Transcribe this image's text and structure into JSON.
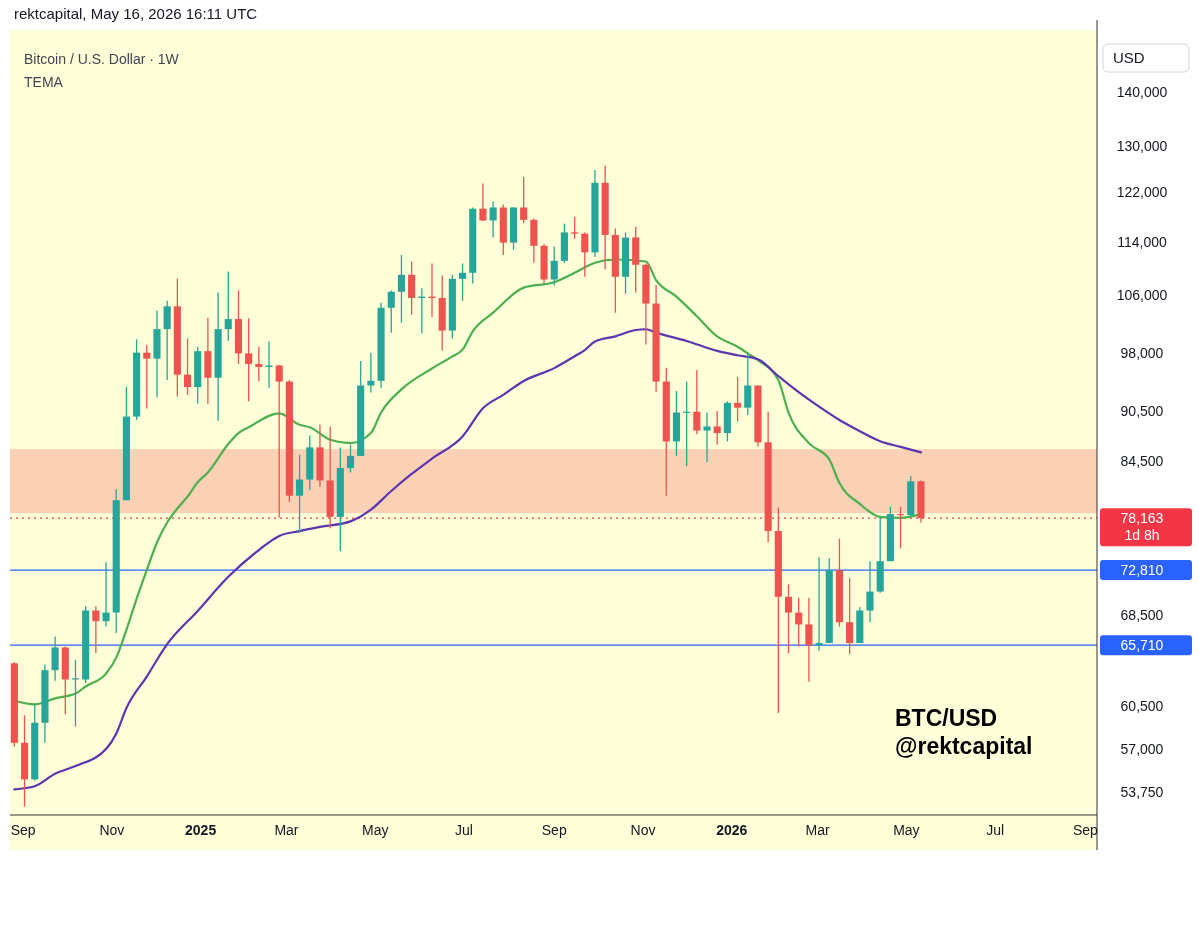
{
  "chart_data": {
    "type": "candlestick",
    "title": "Bitcoin / U.S. Dollar · 1W",
    "subtitle": "TEMA",
    "ylabel": "USD",
    "annotations": [
      "rektcapital, May 16, 2026 16:11 UTC",
      "BTC/USD",
      "@rektcapital",
      "1d 8h"
    ],
    "log": true,
    "xlim": [
      "2024-08-23",
      "2026-09-09"
    ],
    "ylim": [
      52100,
      152300
    ],
    "xticks": [
      {
        "value": "2024-09-01",
        "label": "Sep"
      },
      {
        "value": "2024-11-01",
        "label": "Nov"
      },
      {
        "value": "2025-01-01",
        "label": "2025"
      },
      {
        "value": "2025-03-01",
        "label": "Mar"
      },
      {
        "value": "2025-05-01",
        "label": "May"
      },
      {
        "value": "2025-07-01",
        "label": "Jul"
      },
      {
        "value": "2025-09-01",
        "label": "Sep"
      },
      {
        "value": "2025-11-01",
        "label": "Nov"
      },
      {
        "value": "2026-01-01",
        "label": "2026"
      },
      {
        "value": "2026-03-01",
        "label": "Mar"
      },
      {
        "value": "2026-05-01",
        "label": "May"
      },
      {
        "value": "2026-07-01",
        "label": "Jul"
      },
      {
        "value": "2026-09-01",
        "label": "Sep"
      }
    ],
    "yticks": [
      {
        "value": 53750,
        "label": "53,750"
      },
      {
        "value": 57000,
        "label": "57,000"
      },
      {
        "value": 60500,
        "label": "60,500"
      },
      {
        "value": 68500,
        "label": "68,500"
      },
      {
        "value": 84500,
        "label": "84,500"
      },
      {
        "value": 90500,
        "label": "90,500"
      },
      {
        "value": 98000,
        "label": "98,000"
      },
      {
        "value": 106000,
        "label": "106,000"
      },
      {
        "value": 114000,
        "label": "114,000"
      },
      {
        "value": 122000,
        "label": "122,000"
      },
      {
        "value": 130000,
        "label": "130,000"
      },
      {
        "value": 140000,
        "label": "140,000"
      }
    ],
    "ref_lines": [
      {
        "axis": "y",
        "value": 78163,
        "label": "78,163",
        "color": "#f23645",
        "line_style": "dotted"
      },
      {
        "axis": "y",
        "value": 72810,
        "label": "72,810",
        "color": "#2962ff",
        "line_style": "solid"
      },
      {
        "axis": "y",
        "value": 65710,
        "label": "65,710",
        "color": "#2962ff",
        "line_style": "solid"
      }
    ],
    "bands": [
      {
        "axis": "y",
        "from": 78700,
        "to": 85900,
        "color": "#f9c9ad"
      }
    ],
    "x": [
      "2024-08-26",
      "2024-09-02",
      "2024-09-09",
      "2024-09-16",
      "2024-09-23",
      "2024-09-30",
      "2024-10-07",
      "2024-10-14",
      "2024-10-21",
      "2024-10-28",
      "2024-11-04",
      "2024-11-11",
      "2024-11-18",
      "2024-11-25",
      "2024-12-02",
      "2024-12-09",
      "2024-12-16",
      "2024-12-23",
      "2024-12-30",
      "2025-01-06",
      "2025-01-13",
      "2025-01-20",
      "2025-01-27",
      "2025-02-03",
      "2025-02-10",
      "2025-02-17",
      "2025-02-24",
      "2025-03-03",
      "2025-03-10",
      "2025-03-17",
      "2025-03-24",
      "2025-03-31",
      "2025-04-07",
      "2025-04-14",
      "2025-04-21",
      "2025-04-28",
      "2025-05-05",
      "2025-05-12",
      "2025-05-19",
      "2025-05-26",
      "2025-06-02",
      "2025-06-09",
      "2025-06-16",
      "2025-06-23",
      "2025-06-30",
      "2025-07-07",
      "2025-07-14",
      "2025-07-21",
      "2025-07-28",
      "2025-08-04",
      "2025-08-11",
      "2025-08-18",
      "2025-08-25",
      "2025-09-01",
      "2025-09-08",
      "2025-09-15",
      "2025-09-22",
      "2025-09-29",
      "2025-10-06",
      "2025-10-13",
      "2025-10-20",
      "2025-10-27",
      "2025-11-03",
      "2025-11-10",
      "2025-11-17",
      "2025-11-24",
      "2025-12-01",
      "2025-12-08",
      "2025-12-15",
      "2025-12-22",
      "2025-12-29",
      "2026-01-05",
      "2026-01-12",
      "2026-01-19",
      "2026-01-26",
      "2026-02-02",
      "2026-02-09",
      "2026-02-16",
      "2026-02-23",
      "2026-03-02",
      "2026-03-09",
      "2026-03-16",
      "2026-03-23",
      "2026-03-30",
      "2026-04-06",
      "2026-04-13",
      "2026-04-20",
      "2026-04-27",
      "2026-05-04",
      "2026-05-11"
    ],
    "ohlc": [
      [
        64100,
        64200,
        57200,
        57500
      ],
      [
        57500,
        59700,
        52700,
        54700
      ],
      [
        54700,
        60600,
        54600,
        59100
      ],
      [
        59100,
        64000,
        57500,
        63500
      ],
      [
        63500,
        66500,
        62600,
        65500
      ],
      [
        65500,
        65600,
        59800,
        62700
      ],
      [
        62700,
        64400,
        58800,
        62800
      ],
      [
        62700,
        69300,
        62400,
        68900
      ],
      [
        68900,
        69300,
        65000,
        67900
      ],
      [
        67900,
        73600,
        67400,
        68700
      ],
      [
        68700,
        81300,
        66800,
        80100
      ],
      [
        80100,
        93500,
        80100,
        89800
      ],
      [
        89800,
        99800,
        89400,
        98000
      ],
      [
        98000,
        99000,
        90800,
        97200
      ],
      [
        97200,
        103800,
        92200,
        101200
      ],
      [
        101200,
        105200,
        94400,
        104400
      ],
      [
        104400,
        108400,
        92300,
        95100
      ],
      [
        95100,
        99900,
        92500,
        93500
      ],
      [
        93500,
        98800,
        91400,
        98200
      ],
      [
        98200,
        102800,
        91400,
        94700
      ],
      [
        94700,
        106400,
        89300,
        101200
      ],
      [
        101200,
        109500,
        99600,
        102600
      ],
      [
        102600,
        106700,
        96500,
        97900
      ],
      [
        97900,
        102700,
        91700,
        96500
      ],
      [
        96500,
        98800,
        94200,
        96100
      ],
      [
        96100,
        99500,
        93400,
        96300
      ],
      [
        96300,
        96400,
        78200,
        94200
      ],
      [
        94200,
        94400,
        79900,
        80600
      ],
      [
        80600,
        85200,
        76600,
        82400
      ],
      [
        82400,
        87500,
        81200,
        86100
      ],
      [
        86100,
        88800,
        81600,
        82300
      ],
      [
        82300,
        88600,
        77100,
        78300
      ],
      [
        78300,
        86100,
        74700,
        83700
      ],
      [
        83700,
        86400,
        83200,
        85100
      ],
      [
        85100,
        96900,
        85100,
        93700
      ],
      [
        93700,
        98000,
        92800,
        94300
      ],
      [
        94300,
        104900,
        93400,
        104200
      ],
      [
        104200,
        106700,
        100700,
        106500
      ],
      [
        106500,
        112000,
        102100,
        109000
      ],
      [
        109000,
        111000,
        103200,
        105600
      ],
      [
        105600,
        107000,
        100600,
        105800
      ],
      [
        105800,
        110700,
        102900,
        105600
      ],
      [
        105600,
        108900,
        98300,
        101000
      ],
      [
        101000,
        109000,
        99900,
        108400
      ],
      [
        108400,
        110700,
        105200,
        109300
      ],
      [
        109300,
        119500,
        107700,
        119300
      ],
      [
        119300,
        123500,
        117300,
        117400
      ],
      [
        117400,
        120500,
        114700,
        119500
      ],
      [
        119500,
        120000,
        112000,
        113900
      ],
      [
        113900,
        119500,
        112800,
        119500
      ],
      [
        119500,
        124600,
        117000,
        117500
      ],
      [
        117500,
        117700,
        110800,
        113400
      ],
      [
        113400,
        113700,
        107700,
        108300
      ],
      [
        108300,
        113300,
        107400,
        111100
      ],
      [
        111100,
        116900,
        110800,
        115500
      ],
      [
        115500,
        118000,
        114500,
        115300
      ],
      [
        115300,
        115500,
        108700,
        112400
      ],
      [
        112400,
        125800,
        111700,
        123600
      ],
      [
        123600,
        126500,
        109800,
        115100
      ],
      [
        115100,
        116100,
        103500,
        108700
      ],
      [
        108700,
        115500,
        106200,
        114700
      ],
      [
        114700,
        116400,
        106400,
        110500
      ],
      [
        110500,
        110700,
        99100,
        104800
      ],
      [
        104800,
        107500,
        92900,
        94200
      ],
      [
        94200,
        96000,
        80600,
        86800
      ],
      [
        86800,
        93000,
        85100,
        90300
      ],
      [
        90300,
        94200,
        83900,
        90400
      ],
      [
        90400,
        95700,
        87700,
        88100
      ],
      [
        88100,
        90300,
        84400,
        88600
      ],
      [
        88600,
        90500,
        86400,
        87800
      ],
      [
        87800,
        91700,
        86800,
        91500
      ],
      [
        91500,
        94800,
        89200,
        90900
      ],
      [
        90900,
        97900,
        90000,
        93700
      ],
      [
        93700,
        93700,
        86200,
        86700
      ],
      [
        86700,
        90400,
        75600,
        76800
      ],
      [
        76800,
        79300,
        59900,
        70200
      ],
      [
        70200,
        71400,
        65000,
        68700
      ],
      [
        68700,
        70100,
        65600,
        67600
      ],
      [
        67600,
        70100,
        62500,
        65700
      ],
      [
        65700,
        74100,
        65200,
        65900
      ],
      [
        65900,
        74000,
        65900,
        72800
      ],
      [
        72800,
        76000,
        67400,
        67800
      ],
      [
        67800,
        72000,
        64900,
        65900
      ],
      [
        65900,
        69200,
        65900,
        68900
      ],
      [
        68900,
        73700,
        67800,
        70700
      ],
      [
        70700,
        78300,
        70600,
        73700
      ],
      [
        73700,
        79400,
        73700,
        78600
      ],
      [
        78600,
        79400,
        75000,
        78500
      ],
      [
        78500,
        82800,
        78300,
        82200
      ],
      [
        82200,
        82300,
        77700,
        78163
      ]
    ],
    "series": [
      {
        "type": "line",
        "color": "#4caf50",
        "x": [
          "2024-08-26",
          "2024-09-09",
          "2024-09-23",
          "2024-10-07",
          "2024-10-14",
          "2024-10-28",
          "2024-11-04",
          "2024-11-11",
          "2024-11-18",
          "2024-11-25",
          "2024-12-02",
          "2024-12-09",
          "2024-12-16",
          "2024-12-23",
          "2024-12-30",
          "2025-01-06",
          "2025-01-20",
          "2025-01-27",
          "2025-02-03",
          "2025-02-24",
          "2025-03-10",
          "2025-03-17",
          "2025-03-31",
          "2025-04-14",
          "2025-04-28",
          "2025-05-05",
          "2025-05-19",
          "2025-06-09",
          "2025-06-23",
          "2025-06-30",
          "2025-07-07",
          "2025-07-21",
          "2025-08-11",
          "2025-09-01",
          "2025-09-15",
          "2025-09-29",
          "2025-10-13",
          "2025-11-03",
          "2025-11-10",
          "2025-11-24",
          "2025-12-08",
          "2025-12-22",
          "2026-01-05",
          "2026-01-12",
          "2026-01-19",
          "2026-02-02",
          "2026-02-09",
          "2026-02-23",
          "2026-03-09",
          "2026-03-16",
          "2026-03-30",
          "2026-04-13",
          "2026-04-27",
          "2026-05-11"
        ],
        "values": [
          60900,
          60600,
          61100,
          61500,
          62100,
          63200,
          64600,
          67100,
          70000,
          72800,
          75600,
          77700,
          79200,
          80500,
          82100,
          83200,
          86500,
          87800,
          88500,
          90200,
          88800,
          88500,
          87000,
          86600,
          87800,
          90300,
          93200,
          95900,
          97500,
          98400,
          100900,
          103500,
          107100,
          107900,
          109300,
          110800,
          111300,
          111000,
          108200,
          105800,
          103000,
          100200,
          98800,
          97900,
          97000,
          94400,
          90300,
          86600,
          84700,
          82000,
          79700,
          78300,
          78200,
          78600
        ]
      },
      {
        "type": "line",
        "color": "#5e35b1",
        "x": [
          "2024-08-26",
          "2024-09-09",
          "2024-09-23",
          "2024-10-07",
          "2024-10-28",
          "2024-11-04",
          "2024-11-11",
          "2024-11-25",
          "2024-12-09",
          "2024-12-30",
          "2025-01-20",
          "2025-02-10",
          "2025-02-24",
          "2025-03-10",
          "2025-03-24",
          "2025-04-14",
          "2025-04-28",
          "2025-05-12",
          "2025-05-26",
          "2025-06-09",
          "2025-06-30",
          "2025-07-14",
          "2025-07-28",
          "2025-08-11",
          "2025-09-01",
          "2025-09-15",
          "2025-09-22",
          "2025-09-29",
          "2025-10-13",
          "2025-10-27",
          "2025-11-03",
          "2025-11-10",
          "2025-12-01",
          "2025-12-22",
          "2026-01-05",
          "2026-01-19",
          "2026-02-02",
          "2026-02-16",
          "2026-03-02",
          "2026-03-16",
          "2026-03-30",
          "2026-04-13",
          "2026-04-27",
          "2026-05-11"
        ],
        "values": [
          53960,
          54190,
          55120,
          55700,
          57010,
          58220,
          60290,
          62950,
          65800,
          68860,
          72140,
          74830,
          76290,
          76790,
          77230,
          77820,
          79070,
          81120,
          83030,
          84790,
          87390,
          90820,
          92510,
          94280,
          95950,
          97510,
          98340,
          99500,
          100210,
          101080,
          101180,
          100720,
          99580,
          98230,
          97650,
          97110,
          94910,
          92840,
          91020,
          89380,
          88030,
          86820,
          86160,
          85520
        ]
      }
    ]
  }
}
